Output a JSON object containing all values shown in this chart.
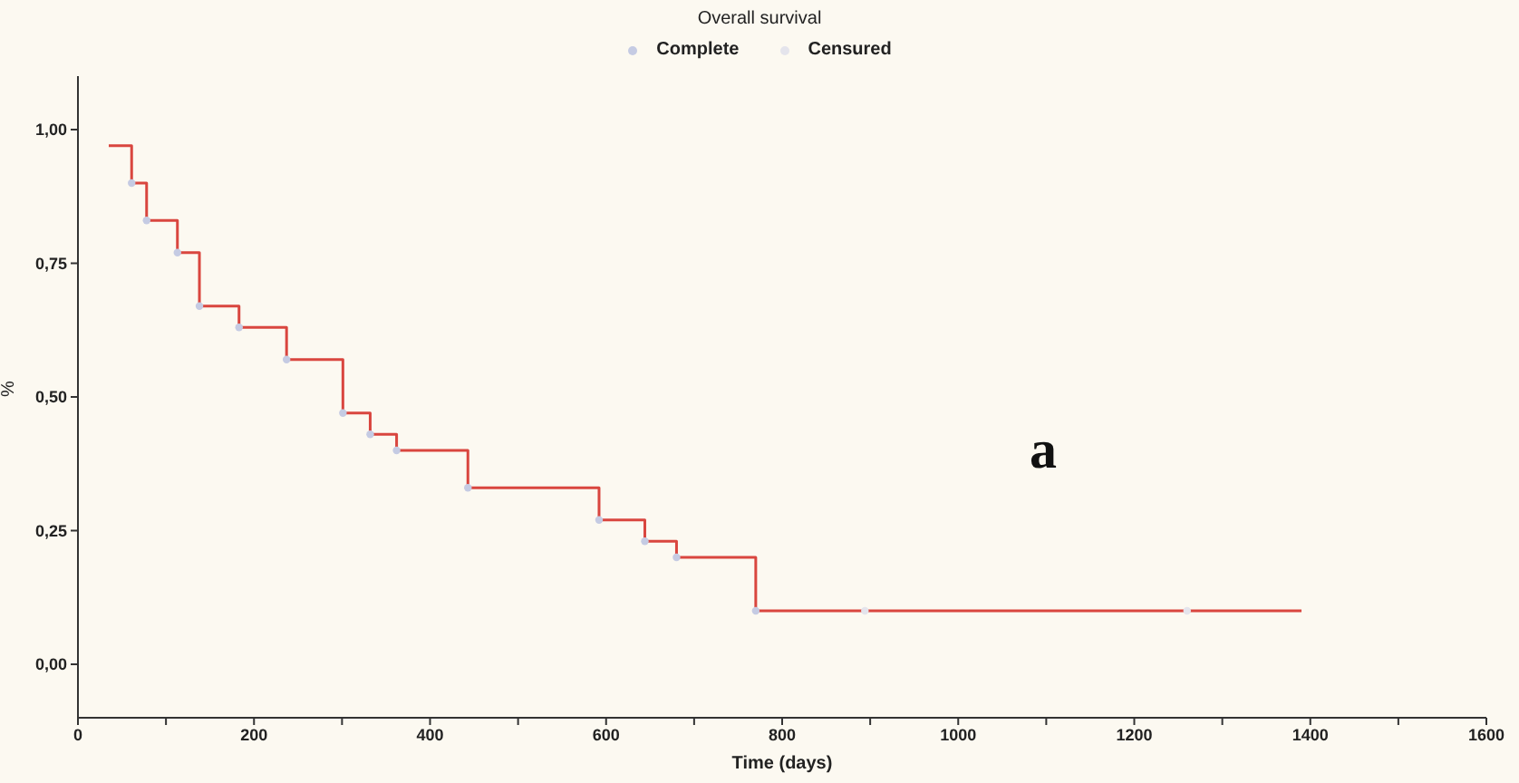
{
  "chart_data": {
    "type": "step",
    "title": "Overall survival",
    "xlabel": "Time (days)",
    "ylabel": "%",
    "xlim": [
      0,
      1600
    ],
    "xticks": [
      0,
      {
        "value": 100,
        "label": null
      },
      200,
      {
        "value": 300,
        "label": null
      },
      400,
      {
        "value": 500,
        "label": null
      },
      600,
      {
        "value": 700,
        "label": null
      },
      800,
      {
        "value": 900,
        "label": null
      },
      1000,
      {
        "value": 1100,
        "label": null
      },
      1200,
      {
        "value": 1300,
        "label": null
      },
      1400,
      {
        "value": 1500,
        "label": null
      },
      1600
    ],
    "ylim": [
      -0.1,
      1.1
    ],
    "yticks": [
      {
        "value": 0,
        "label": "0,00"
      },
      {
        "value": 0.25,
        "label": "0,25"
      },
      {
        "value": 0.5,
        "label": "0,50"
      },
      {
        "value": 0.75,
        "label": "0,75"
      },
      {
        "value": 1,
        "label": "1,00"
      }
    ],
    "legend": "top",
    "line_style": "solid",
    "annotations": [
      "a"
    ],
    "series": [
      {
        "color": "#d9463f",
        "x": [
          35,
          61,
          78,
          113,
          138,
          183,
          237,
          301,
          332,
          362,
          443,
          592,
          644,
          680,
          770,
          1390
        ],
        "values": [
          0.97,
          0.9,
          0.83,
          0.77,
          0.67,
          0.63,
          0.57,
          0.47,
          0.43,
          0.4,
          0.33,
          0.27,
          0.23,
          0.2,
          0.1,
          0.1
        ]
      },
      {
        "type": "scatter",
        "marker": "circle",
        "name": "Complete",
        "color": "#c5cbe3",
        "x": [
          61,
          78,
          113,
          138,
          183,
          237,
          301,
          332,
          362,
          443,
          592,
          644,
          680,
          770
        ],
        "values": [
          0.9,
          0.83,
          0.77,
          0.67,
          0.63,
          0.57,
          0.47,
          0.43,
          0.4,
          0.33,
          0.27,
          0.23,
          0.2,
          0.1
        ]
      },
      {
        "type": "scatter",
        "marker": "circle",
        "name": "Censured",
        "color": "#e4e4ec",
        "x": [
          894,
          1260
        ],
        "values": [
          0.1,
          0.1
        ]
      }
    ]
  }
}
